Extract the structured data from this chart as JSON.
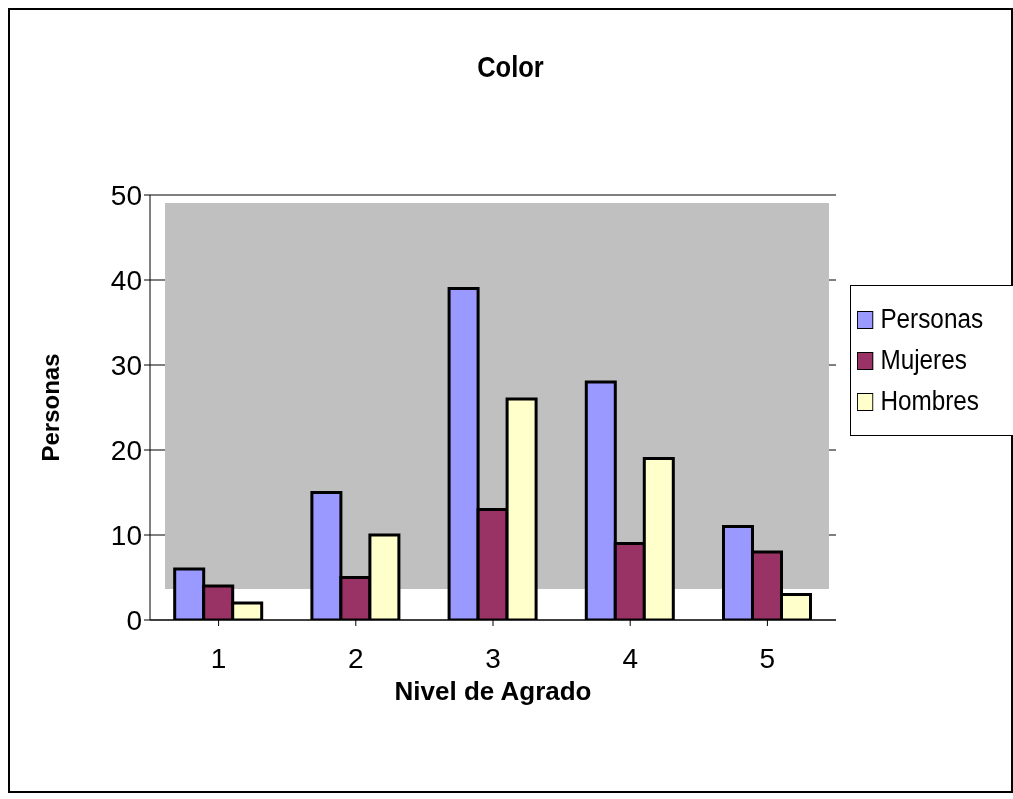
{
  "chart_data": {
    "type": "bar",
    "title": "Color",
    "xlabel": "Nivel de Agrado",
    "ylabel": "Personas",
    "categories": [
      "1",
      "2",
      "3",
      "4",
      "5"
    ],
    "series": [
      {
        "name": "Personas",
        "color": "#9999ff",
        "values": [
          6,
          15,
          39,
          28,
          11
        ]
      },
      {
        "name": "Mujeres",
        "color": "#993366",
        "values": [
          4,
          5,
          13,
          9,
          8
        ]
      },
      {
        "name": "Hombres",
        "color": "#ffffcc",
        "values": [
          2,
          10,
          26,
          19,
          3
        ]
      }
    ],
    "ylim": [
      0,
      50
    ],
    "yticks": [
      0,
      10,
      20,
      30,
      40,
      50
    ],
    "grid": "y",
    "legend": "right"
  }
}
